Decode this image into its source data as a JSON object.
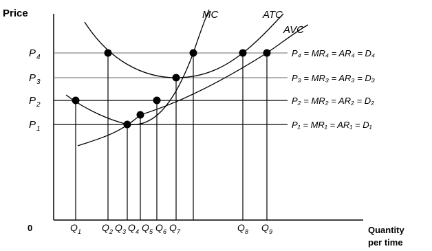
{
  "chart_data": {
    "type": "line",
    "title": "",
    "ylabel": "Price",
    "xlabel_line1": "Quantity",
    "xlabel_line2": "per time",
    "origin_label": "0",
    "price_levels": [
      {
        "base": "P",
        "sub": "4",
        "value": 4
      },
      {
        "base": "P",
        "sub": "3",
        "value": 3
      },
      {
        "base": "P",
        "sub": "2",
        "value": 2
      },
      {
        "base": "P",
        "sub": "1",
        "value": 1
      }
    ],
    "quantities": [
      {
        "base": "Q",
        "sub": "1",
        "value": 1
      },
      {
        "base": "Q",
        "sub": "2",
        "value": 2
      },
      {
        "base": "Q",
        "sub": "3",
        "value": 3
      },
      {
        "base": "Q",
        "sub": "4",
        "value": 4
      },
      {
        "base": "Q",
        "sub": "5",
        "value": 5
      },
      {
        "base": "Q",
        "sub": "6",
        "value": 6
      },
      {
        "base": "Q",
        "sub": "7",
        "value": 7
      },
      {
        "base": "Q",
        "sub": "8",
        "value": 8
      },
      {
        "base": "Q",
        "sub": "9",
        "value": 9
      }
    ],
    "demand_labels": [
      {
        "level": "4",
        "text": "P₄ = MR₄ = AR₄ = D₄"
      },
      {
        "level": "3",
        "text": "P₃ = MR₃ = AR₃ = D₃"
      },
      {
        "level": "2",
        "text": "P₂ = MR₂ = AR₂ = D₂"
      },
      {
        "level": "1",
        "text": "P₁ = MR₁ = AR₁ = D₁"
      }
    ],
    "curves": [
      {
        "name": "MC"
      },
      {
        "name": "ATC"
      },
      {
        "name": "AVC"
      }
    ],
    "points": [
      {
        "q": "1",
        "p": "2"
      },
      {
        "q": "2",
        "p": "4"
      },
      {
        "q": "3",
        "p": "1"
      },
      {
        "q": "4",
        "p": "1.3"
      },
      {
        "q": "5",
        "p": "2"
      },
      {
        "q": "6",
        "p": "3"
      },
      {
        "q": "7",
        "p": "4"
      },
      {
        "q": "8",
        "p": "4"
      },
      {
        "q": "9",
        "p": "4"
      }
    ],
    "grid": false,
    "legend": "none"
  }
}
